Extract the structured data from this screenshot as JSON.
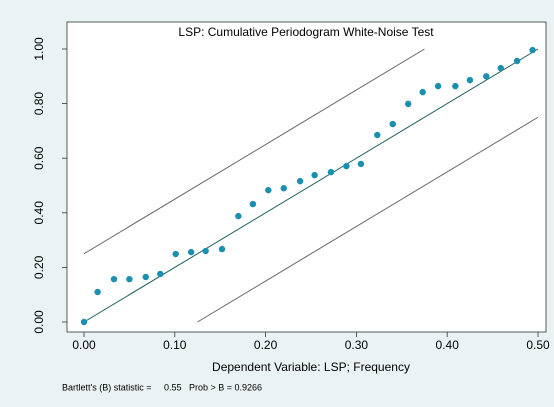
{
  "chart_data": {
    "type": "scatter",
    "title": "LSP: Cumulative Periodogram White-Noise Test",
    "x_label": "Dependent Variable: LSP; Frequency",
    "note": "Bartlett's (B) statistic =     0.55   Prob > B = 0.9266",
    "color": "#1a8fb0",
    "x": [
      0,
      0.015,
      0.033,
      0.05,
      0.068,
      0.084,
      0.101,
      0.118,
      0.134,
      0.152,
      0.17,
      0.186,
      0.203,
      0.22,
      0.238,
      0.254,
      0.272,
      0.289,
      0.305,
      0.323,
      0.34,
      0.357,
      0.373,
      0.39,
      0.409,
      0.425,
      0.443,
      0.459,
      0.477,
      0.494
    ],
    "values": [
      0,
      0.11,
      0.157,
      0.157,
      0.165,
      0.176,
      0.249,
      0.256,
      0.26,
      0.267,
      0.388,
      0.432,
      0.483,
      0.49,
      0.516,
      0.538,
      0.549,
      0.571,
      0.579,
      0.685,
      0.725,
      0.799,
      0.842,
      0.864,
      0.864,
      0.886,
      0.9,
      0.93,
      0.956,
      0.996
    ],
    "reference_lines": [
      {
        "color": "#1f5f5f",
        "x": [
          0,
          0.5
        ],
        "y": [
          0,
          1
        ]
      },
      {
        "color": "#666666",
        "x": [
          0,
          0.375
        ],
        "y": [
          0.25,
          1
        ]
      },
      {
        "color": "#666666",
        "x": [
          0.125,
          0.5
        ],
        "y": [
          0,
          0.75
        ]
      }
    ],
    "xlim": [
      0,
      0.5
    ],
    "ylim": [
      0,
      1
    ],
    "xticks": [
      {
        "value": 0,
        "label": "0.00"
      },
      {
        "value": 0.1,
        "label": "0.10"
      },
      {
        "value": 0.2,
        "label": "0.20"
      },
      {
        "value": 0.3,
        "label": "0.30"
      },
      {
        "value": 0.4,
        "label": "0.40"
      },
      {
        "value": 0.5,
        "label": "0.50"
      }
    ],
    "yticks": [
      {
        "value": 0,
        "label": "0.00"
      },
      {
        "value": 0.2,
        "label": "0.20"
      },
      {
        "value": 0.4,
        "label": "0.40"
      },
      {
        "value": 0.6,
        "label": "0.60"
      },
      {
        "value": 0.8,
        "label": "0.80"
      },
      {
        "value": 1,
        "label": "1.00"
      }
    ]
  }
}
